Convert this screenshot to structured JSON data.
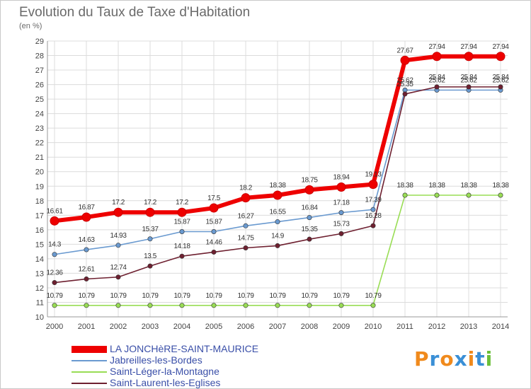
{
  "chart_data": {
    "type": "line",
    "title": "Evolution du Taux de Taxe d'Habitation",
    "unit_label": "(en %)",
    "x": [
      "2000",
      "2001",
      "2002",
      "2003",
      "2004",
      "2005",
      "2006",
      "2007",
      "2008",
      "2009",
      "2010",
      "2011",
      "2012",
      "2013",
      "2014"
    ],
    "ylim": [
      10,
      29
    ],
    "yticks": [
      "10",
      "11",
      "12",
      "13",
      "14",
      "15",
      "16",
      "17",
      "18",
      "19",
      "20",
      "21",
      "22",
      "23",
      "24",
      "25",
      "26",
      "27",
      "28",
      "29"
    ],
    "grid": true,
    "legend_position": "bottom-left",
    "series": [
      {
        "name": "LA JONCHèRE-SAINT-MAURICE",
        "color": "#ee0000",
        "values": [
          16.61,
          16.87,
          17.2,
          17.2,
          17.2,
          17.5,
          18.2,
          18.38,
          18.75,
          18.94,
          19.13,
          27.67,
          27.94,
          27.94,
          27.94
        ],
        "labels": [
          "16.61",
          "16.87",
          "17.2",
          "17.2",
          "17.2",
          "17.5",
          "18.2",
          "18.38",
          "18.75",
          "18.94",
          "19.13",
          "27.67",
          "27.94",
          "27.94",
          "27.94"
        ]
      },
      {
        "name": "Jabreilles-les-Bordes",
        "color": "#6a9ad0",
        "values": [
          14.3,
          14.63,
          14.93,
          15.37,
          15.87,
          15.87,
          16.27,
          16.55,
          16.84,
          17.18,
          17.39,
          25.62,
          25.62,
          25.62,
          25.62
        ],
        "labels": [
          "14.3",
          "14.63",
          "14.93",
          "15.37",
          "15.87",
          "15.87",
          "16.27",
          "16.55",
          "16.84",
          "17.18",
          "17.39",
          "25.62",
          "25.62",
          "25.62",
          "25.62"
        ]
      },
      {
        "name": "Saint-Léger-la-Montagne",
        "color": "#99dd55",
        "values": [
          10.79,
          10.79,
          10.79,
          10.79,
          10.79,
          10.79,
          10.79,
          10.79,
          10.79,
          10.79,
          10.79,
          18.38,
          18.38,
          18.38,
          18.38
        ],
        "labels": [
          "10.79",
          "10.79",
          "10.79",
          "10.79",
          "10.79",
          "10.79",
          "10.79",
          "10.79",
          "10.79",
          "10.79",
          "10.79",
          "18.38",
          "18.38",
          "18.38",
          "18.38"
        ]
      },
      {
        "name": "Saint-Laurent-les-Eglises",
        "color": "#6e2030",
        "values": [
          12.36,
          12.61,
          12.74,
          13.5,
          14.18,
          14.46,
          14.75,
          14.9,
          15.35,
          15.73,
          16.28,
          25.35,
          25.84,
          25.84,
          25.84
        ],
        "labels": [
          "12.36",
          "12.61",
          "12.74",
          "13.5",
          "14.18",
          "14.46",
          "14.75",
          "14.9",
          "15.35",
          "15.73",
          "16.28",
          "25.35",
          "25.84",
          "25.84",
          "25.84"
        ]
      }
    ]
  },
  "logo": {
    "text": "Proxiti",
    "colors": [
      "#f08a1c",
      "#3a8fd6",
      "#f08a1c",
      "#3a8fd6",
      "#f08a1c",
      "#3a8fd6",
      "#6bbf3a"
    ]
  }
}
